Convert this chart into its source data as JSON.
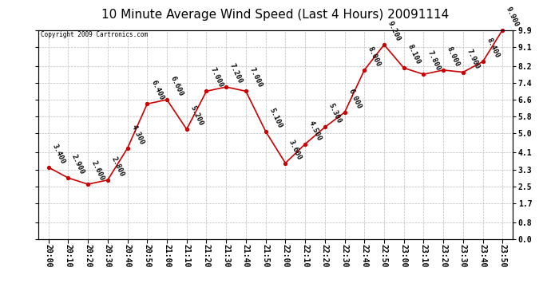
{
  "title": "10 Minute Average Wind Speed (Last 4 Hours) 20091114",
  "copyright": "Copyright 2009 Cartronics.com",
  "times": [
    "20:00",
    "20:10",
    "20:20",
    "20:30",
    "20:40",
    "20:50",
    "21:00",
    "21:10",
    "21:20",
    "21:30",
    "21:40",
    "21:50",
    "22:00",
    "22:10",
    "22:20",
    "22:30",
    "22:40",
    "22:50",
    "23:00",
    "23:10",
    "23:20",
    "23:30",
    "23:40",
    "23:50"
  ],
  "values": [
    3.4,
    2.9,
    2.6,
    2.8,
    4.3,
    6.4,
    6.6,
    5.2,
    7.0,
    7.2,
    7.0,
    5.1,
    3.6,
    4.5,
    5.3,
    6.0,
    8.0,
    9.2,
    8.1,
    7.8,
    8.0,
    7.9,
    8.4,
    9.9
  ],
  "labels": [
    "3.400",
    "2.900",
    "2.600",
    "2.800",
    "4.300",
    "6.400",
    "6.600",
    "5.200",
    "7.000",
    "7.200",
    "7.000",
    "5.100",
    "3.600",
    "4.500",
    "5.300",
    "6.000",
    "8.000",
    "9.200",
    "8.100",
    "7.800",
    "8.000",
    "7.900",
    "8.400",
    "9.900"
  ],
  "yticks": [
    0.0,
    0.8,
    1.7,
    2.5,
    3.3,
    4.1,
    5.0,
    5.8,
    6.6,
    7.4,
    8.2,
    9.1,
    9.9
  ],
  "ymin": 0.0,
  "ymax": 9.9,
  "line_color": "#cc0000",
  "marker_color": "#cc0000",
  "bg_color": "#ffffff",
  "grid_color": "#bbbbbb",
  "title_fontsize": 11,
  "label_fontsize": 6.5,
  "axis_fontsize": 7.0
}
